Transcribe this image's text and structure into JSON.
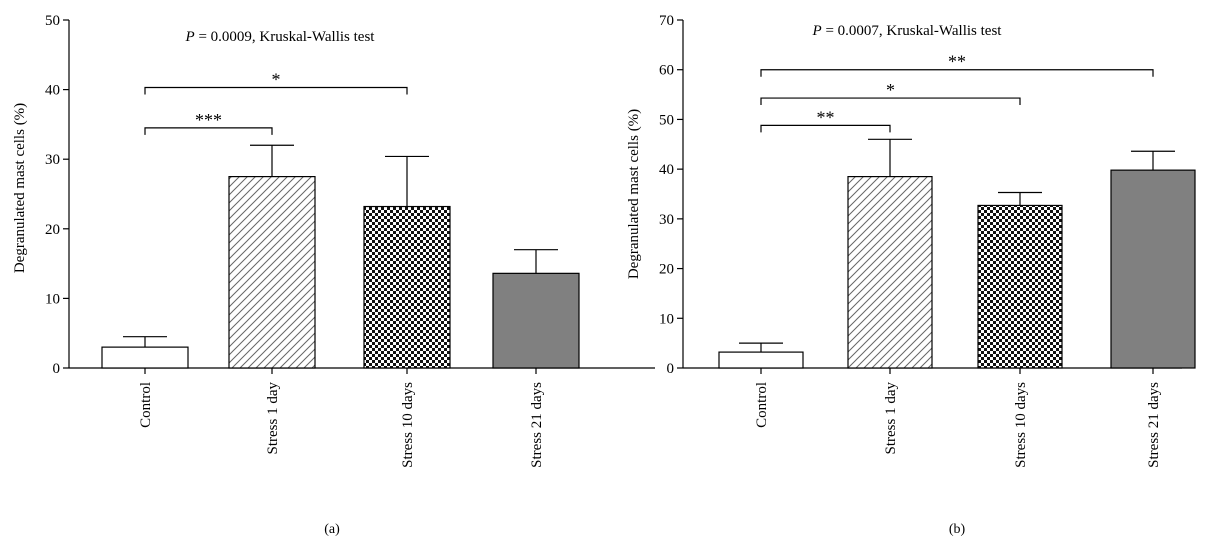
{
  "chart_data": [
    {
      "type": "bar",
      "panel_label": "(a)",
      "annotation": {
        "italic": "P",
        "text": " = 0.0009, Kruskal-Wallis test"
      },
      "ylabel": "Degranulated mast cells (%)",
      "xlabel": "",
      "ylim": [
        0,
        50
      ],
      "yticks": [
        0,
        10,
        20,
        30,
        40,
        50
      ],
      "categories": [
        "Control",
        "Stress 1 day",
        "Stress 10 days",
        "Stress 21 days"
      ],
      "values": [
        3.0,
        27.5,
        23.2,
        13.6
      ],
      "errors": [
        1.5,
        4.5,
        7.2,
        3.4
      ],
      "fills": [
        "white",
        "hatch",
        "checker",
        "#808080"
      ],
      "significance": [
        {
          "from": 0,
          "to": 1,
          "y": 34.5,
          "label": "***"
        },
        {
          "from": 0,
          "to": 2,
          "y": 40.3,
          "label": "*"
        }
      ]
    },
    {
      "type": "bar",
      "panel_label": "(b)",
      "annotation": {
        "italic": "P",
        "text": " = 0.0007, Kruskal-Wallis test"
      },
      "ylabel": "Degranulated mast cells (%)",
      "xlabel": "",
      "ylim": [
        0,
        70
      ],
      "yticks": [
        0,
        10,
        20,
        30,
        40,
        50,
        60,
        70
      ],
      "categories": [
        "Control",
        "Stress 1 day",
        "Stress 10 days",
        "Stress 21 days"
      ],
      "values": [
        3.2,
        38.5,
        32.7,
        39.8
      ],
      "errors": [
        1.8,
        7.5,
        2.6,
        3.8
      ],
      "fills": [
        "white",
        "hatch",
        "checker",
        "#808080"
      ],
      "significance": [
        {
          "from": 0,
          "to": 1,
          "y": 48.8,
          "label": "**"
        },
        {
          "from": 0,
          "to": 2,
          "y": 54.3,
          "label": "*"
        },
        {
          "from": 0,
          "to": 3,
          "y": 60.0,
          "label": "**"
        }
      ]
    }
  ]
}
